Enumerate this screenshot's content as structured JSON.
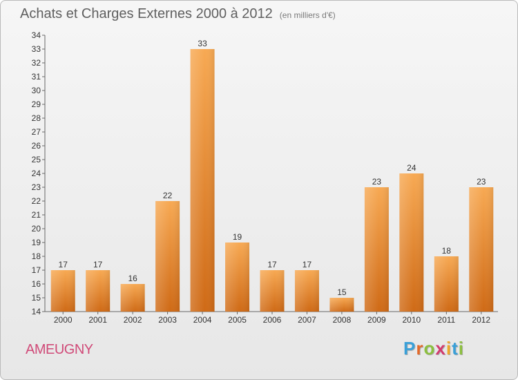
{
  "title": "Achats et Charges Externes 2000 à 2012",
  "subtitle": "(en milliers d'€)",
  "commune": "AMEUGNY",
  "logo": {
    "text": "Proxiti",
    "letters": [
      "P",
      "r",
      "o",
      "x",
      "i",
      "t",
      "i"
    ],
    "colors": [
      "#3aa0d8",
      "#e46a2a",
      "#8cbf3f",
      "#d33a6e",
      "#f0a72a",
      "#3aa0d8",
      "#8cbf3f"
    ]
  },
  "colors": {
    "bar_top": "#f7a953",
    "bar_bottom": "#cf6a16",
    "title": "#5f5f5f",
    "commune": "#d04a78"
  },
  "chart_data": {
    "type": "bar",
    "categories": [
      "2000",
      "2001",
      "2002",
      "2003",
      "2004",
      "2005",
      "2006",
      "2007",
      "2008",
      "2009",
      "2010",
      "2011",
      "2012"
    ],
    "values": [
      17,
      17,
      16,
      22,
      33,
      19,
      17,
      17,
      15,
      23,
      24,
      18,
      23
    ],
    "ylim": [
      14,
      34
    ],
    "yticks": [
      14,
      15,
      16,
      17,
      18,
      19,
      20,
      21,
      22,
      23,
      24,
      25,
      26,
      27,
      28,
      29,
      30,
      31,
      32,
      33,
      34
    ],
    "grid": false,
    "legend": "none"
  }
}
